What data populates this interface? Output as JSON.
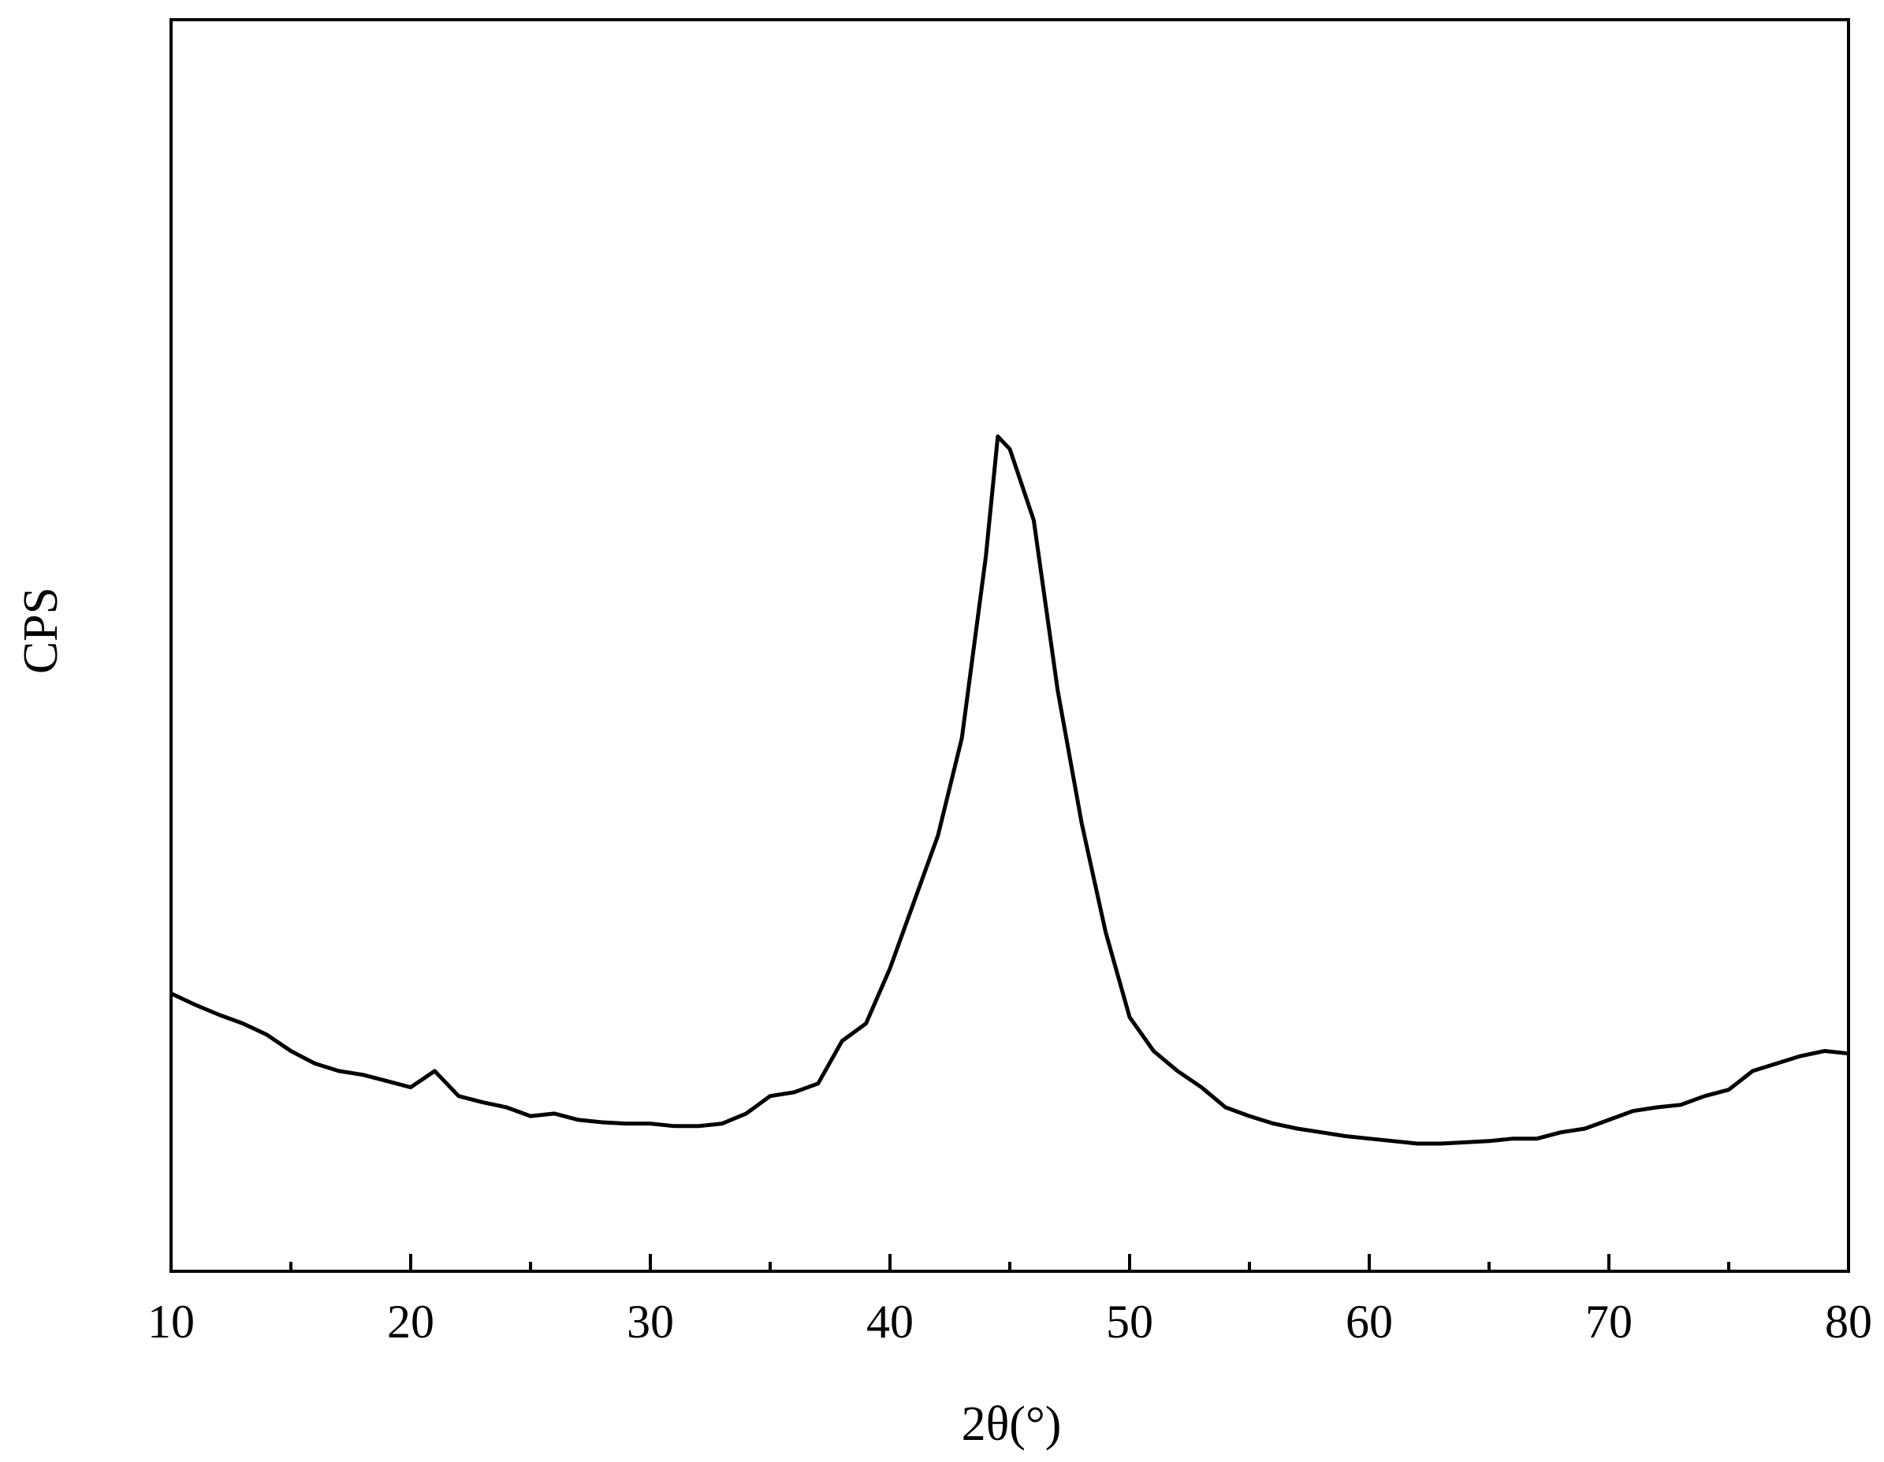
{
  "chart_data": {
    "type": "line",
    "x_label": "2θ(°)",
    "y_label": "CPS",
    "xlim": [
      10,
      80
    ],
    "xticks": [
      10,
      20,
      30,
      40,
      50,
      60,
      70,
      80
    ],
    "xminorticks": [
      15,
      25,
      35,
      45,
      55,
      65,
      75
    ],
    "ylim": [
      0,
      100
    ],
    "grid": false,
    "series": [
      {
        "color": "#000000",
        "x": [
          10,
          11,
          12,
          13,
          14,
          15,
          16,
          17,
          18,
          19,
          20,
          21,
          22,
          23,
          24,
          25,
          26,
          27,
          28,
          29,
          30,
          31,
          32,
          33,
          34,
          35,
          36,
          37,
          38,
          39,
          40,
          41,
          42,
          43,
          44,
          44.5,
          45,
          46,
          47,
          48,
          49,
          50,
          51,
          52,
          53,
          54,
          55,
          56,
          57,
          58,
          59,
          60,
          61,
          62,
          63,
          64,
          65,
          66,
          67,
          68,
          69,
          70,
          71,
          72,
          73,
          74,
          75,
          76,
          77,
          78,
          79,
          80
        ],
        "values": [
          22.2,
          21.3,
          20.5,
          19.8,
          18.9,
          17.6,
          16.6,
          16.0,
          15.7,
          15.2,
          14.7,
          16.0,
          14.0,
          13.5,
          13.1,
          12.4,
          12.6,
          12.1,
          11.9,
          11.8,
          11.8,
          11.6,
          11.6,
          11.8,
          12.6,
          14.0,
          14.3,
          15.0,
          18.4,
          19.8,
          24.2,
          29.5,
          34.8,
          42.6,
          57.1,
          66.7,
          65.7,
          60.0,
          46.4,
          35.8,
          27.1,
          20.3,
          17.6,
          16.0,
          14.7,
          13.1,
          12.4,
          11.8,
          11.4,
          11.1,
          10.8,
          10.6,
          10.4,
          10.2,
          10.2,
          10.3,
          10.4,
          10.6,
          10.6,
          11.1,
          11.4,
          12.1,
          12.8,
          13.1,
          13.3,
          14.0,
          14.5,
          16.0,
          16.6,
          17.2,
          17.6,
          17.4
        ]
      }
    ]
  }
}
